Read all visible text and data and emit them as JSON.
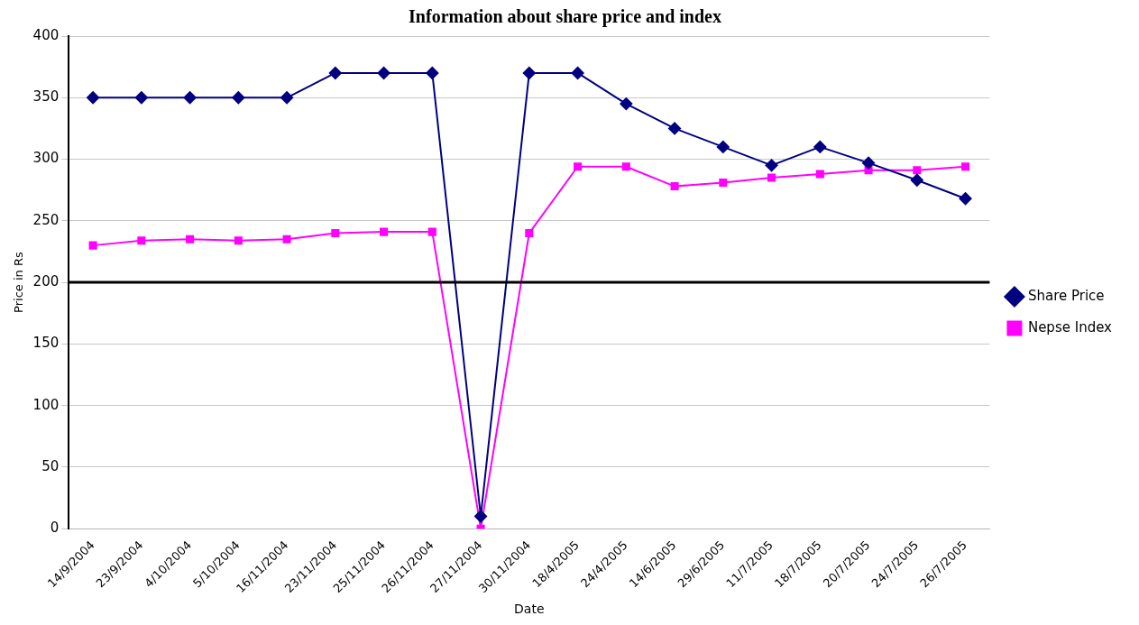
{
  "chart_data": {
    "type": "line",
    "title": "Information about share price and index",
    "xlabel": "Date",
    "ylabel": "Price in Rs",
    "categories": [
      "14/9/2004",
      "23/9/2004",
      "4/10/2004",
      "5/10/2004",
      "16/11/2004",
      "23/11/2004",
      "25/11/2004",
      "26/11/2004",
      "27/11/2004",
      "30/11/2004",
      "18/4/2005",
      "24/4/2005",
      "14/6/2005",
      "29/6/2005",
      "11/7/2005",
      "18/7/2005",
      "20/7/2005",
      "24/7/2005",
      "26/7/2005"
    ],
    "series": [
      {
        "name": "Share Price",
        "color": "#000080",
        "marker": "diamond",
        "values": [
          350,
          350,
          350,
          350,
          350,
          370,
          370,
          370,
          10,
          370,
          370,
          345,
          325,
          310,
          295,
          310,
          297,
          283,
          268
        ]
      },
      {
        "name": "Nepse Index",
        "color": "#ff00ff",
        "marker": "square",
        "values": [
          230,
          234,
          235,
          234,
          235,
          240,
          241,
          241,
          0,
          240,
          294,
          294,
          278,
          281,
          285,
          288,
          291,
          291,
          294
        ]
      }
    ],
    "ylim": [
      0,
      400
    ],
    "yticks": [
      0,
      50,
      100,
      150,
      200,
      250,
      300,
      350,
      400
    ],
    "grid": "y",
    "legend": "right",
    "ref_lines": [
      {
        "axis": "y",
        "value": 200,
        "color": "#000000"
      }
    ]
  }
}
